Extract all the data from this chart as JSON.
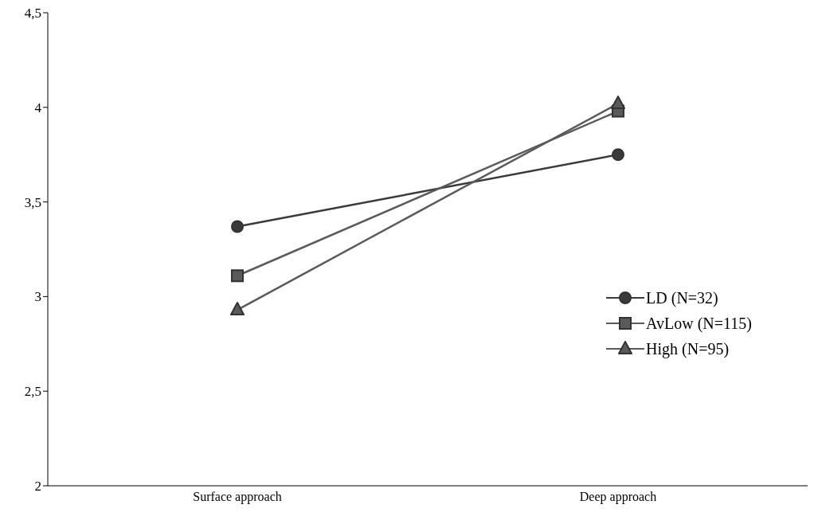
{
  "chart_data": {
    "type": "line",
    "categories": [
      "Surface approach",
      "Deep approach"
    ],
    "series": [
      {
        "name": "LD (N=32)",
        "color": "#3a3a3a",
        "marker": "circle",
        "values": [
          3.37,
          3.75
        ]
      },
      {
        "name": "AvLow (N=115)",
        "color": "#5a5a5a",
        "marker": "square",
        "values": [
          3.11,
          3.98
        ]
      },
      {
        "name": "High (N=95)",
        "color": "#5a5a5a",
        "marker": "triangle",
        "values": [
          2.93,
          4.02
        ]
      }
    ],
    "ylim": [
      2,
      4.5
    ],
    "yticks": [
      2,
      {
        "value": 2.5,
        "label": "2,5"
      },
      3,
      {
        "value": 3.5,
        "label": "3,5"
      },
      4,
      {
        "value": 4.5,
        "label": "4,5"
      }
    ],
    "grid": false,
    "legend": "right"
  }
}
